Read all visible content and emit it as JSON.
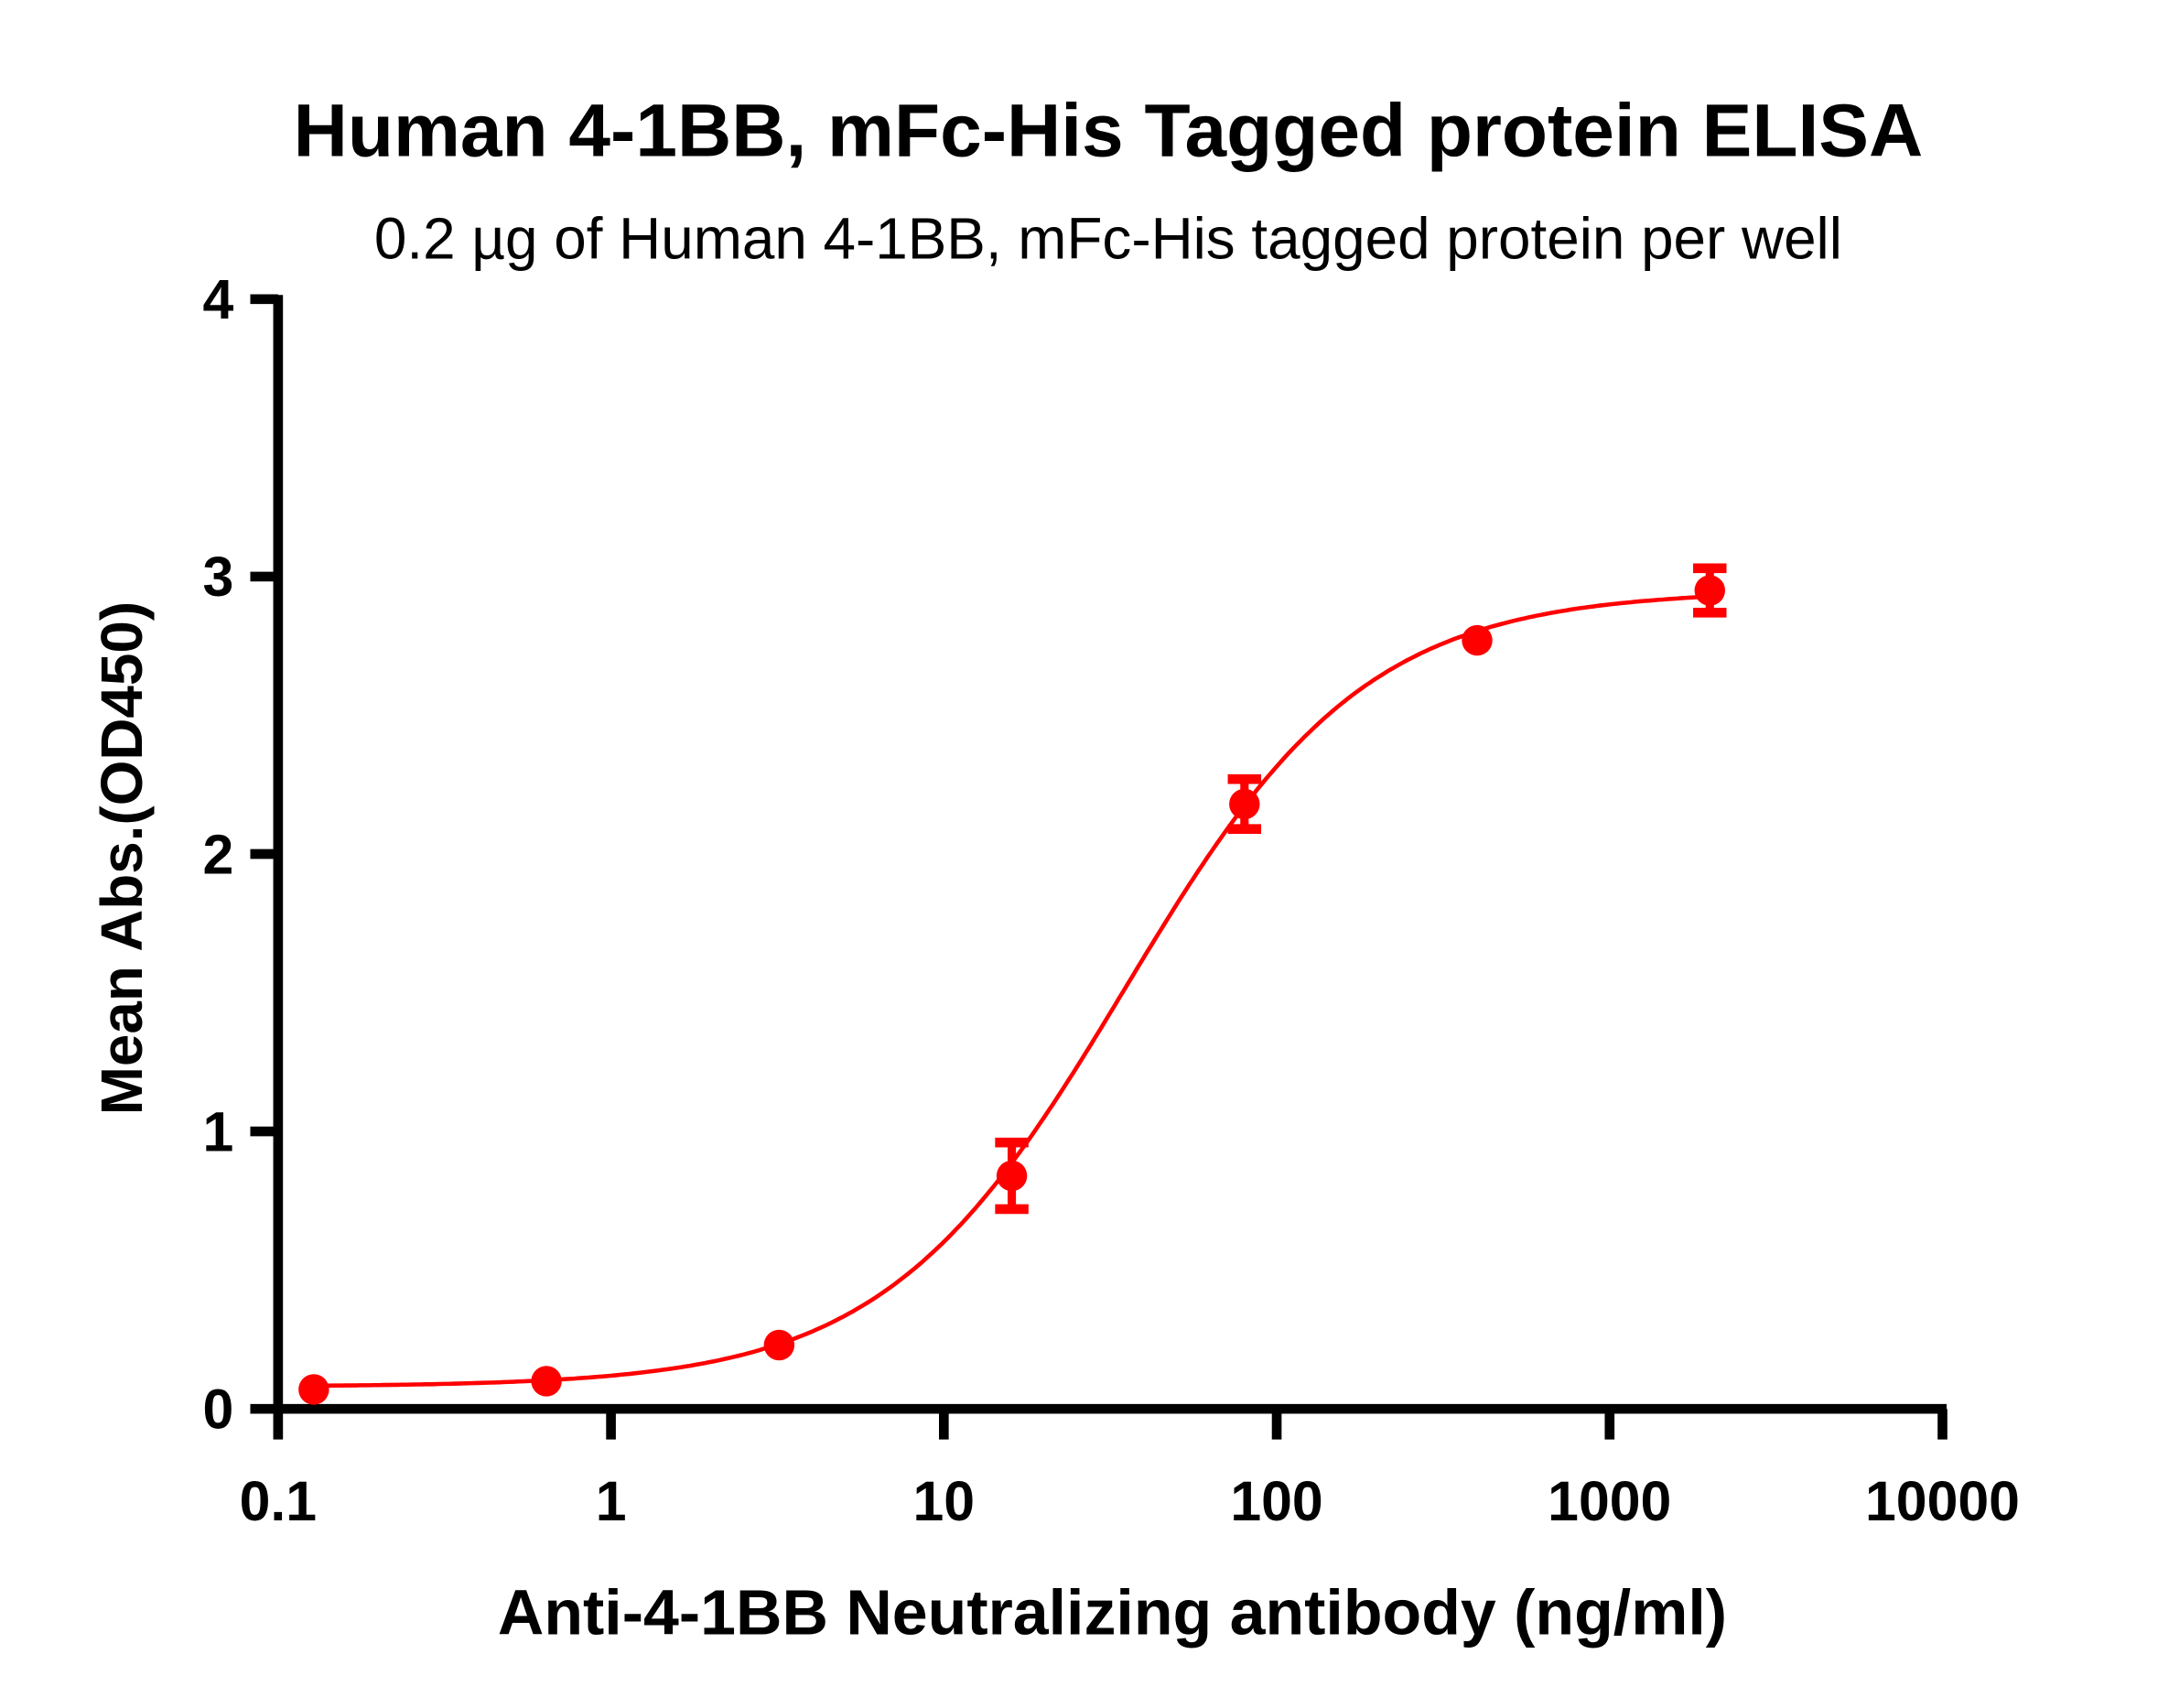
{
  "chart_data": {
    "type": "scatter",
    "title": "Human 4-1BB, mFc-His Tagged protein ELISA",
    "subtitle": "0.2 µg of Human 4-1BB, mFc-His tagged protein per well",
    "xlabel": "Anti-4-1BB Neutralizing antibody (ng/ml)",
    "ylabel": "Mean Abs.(OD450)",
    "xscale": "log",
    "xlim": [
      0.1,
      10000
    ],
    "ylim": [
      0,
      4
    ],
    "xticks": [
      "0.1",
      "1",
      "10",
      "100",
      "1000",
      "10000"
    ],
    "xtick_values": [
      0.1,
      1,
      10,
      100,
      1000,
      10000
    ],
    "yticks": [
      "0",
      "1",
      "2",
      "3",
      "4"
    ],
    "ytick_values": [
      0,
      1,
      2,
      3,
      4
    ],
    "color": "#ff0000",
    "series": [
      {
        "name": "Human 4-1BB, mFc-His",
        "x": [
          0.128,
          0.64,
          3.2,
          16,
          80,
          400,
          2000
        ],
        "y": [
          0.07,
          0.1,
          0.23,
          0.84,
          2.18,
          2.77,
          2.95
        ],
        "error": [
          0.01,
          0.01,
          0.01,
          0.12,
          0.09,
          0.01,
          0.08
        ]
      }
    ],
    "fit": {
      "model": "4PL",
      "bottom": 0.08,
      "top": 2.95,
      "ec50": 35,
      "hill": 1.2
    },
    "grid": false,
    "legend": "none"
  }
}
